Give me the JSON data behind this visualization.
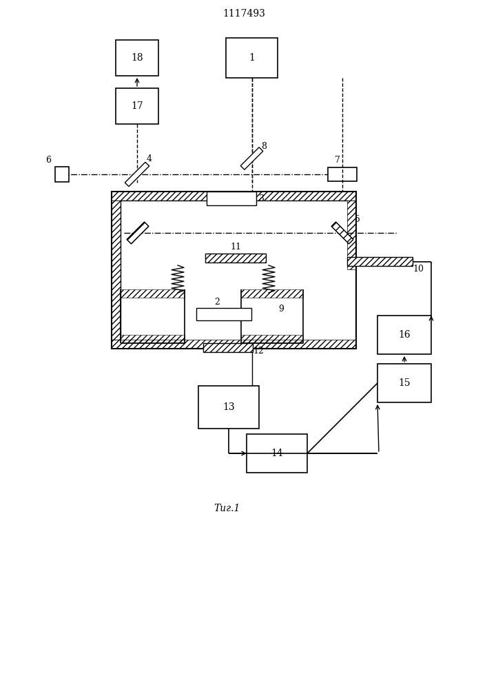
{
  "title": "1117493",
  "caption": "Τиг.1",
  "bg_color": "#ffffff",
  "line_color": "#000000",
  "figsize": [
    7.07,
    10.0
  ],
  "dpi": 100
}
